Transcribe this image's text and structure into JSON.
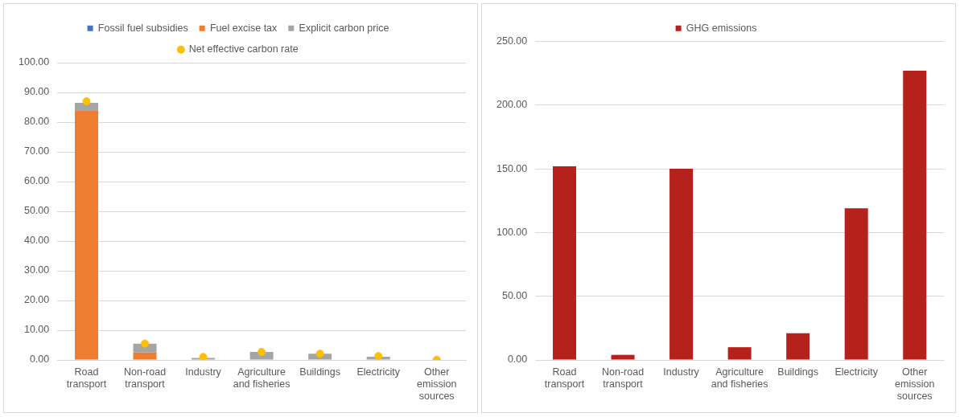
{
  "chart_data": [
    {
      "type": "bar",
      "stacked": true,
      "categories": [
        "Road transport",
        "Non-road transport",
        "Industry",
        "Agriculture and fisheries",
        "Buildings",
        "Electricity",
        "Other emission sources"
      ],
      "series": [
        {
          "name": "Fossil fuel subsidies",
          "color": "#4472c4",
          "values": [
            0,
            0,
            0,
            0,
            0,
            0,
            0
          ]
        },
        {
          "name": "Fuel excise tax",
          "color": "#ed7d31",
          "values": [
            84,
            2.5,
            0,
            0,
            0,
            0,
            0
          ]
        },
        {
          "name": "Explicit carbon price",
          "color": "#a5a5a5",
          "values": [
            2.5,
            3,
            0.7,
            2.7,
            2.1,
            1.1,
            0
          ]
        },
        {
          "name": "Net effective carbon rate",
          "type": "scatter",
          "color": "#ffc000",
          "values": [
            87,
            5.5,
            1,
            2.7,
            2.1,
            1.3,
            0.1
          ]
        }
      ],
      "ylim": [
        0,
        100
      ],
      "yticks": [
        {
          "value": 0,
          "label": "0.00"
        },
        {
          "value": 10,
          "label": "10.00"
        },
        {
          "value": 20,
          "label": "20.00"
        },
        {
          "value": 30,
          "label": "30.00"
        },
        {
          "value": 40,
          "label": "40.00"
        },
        {
          "value": 50,
          "label": "50.00"
        },
        {
          "value": 60,
          "label": "60.00"
        },
        {
          "value": 70,
          "label": "70.00"
        },
        {
          "value": 80,
          "label": "80.00"
        },
        {
          "value": 90,
          "label": "90.00"
        },
        {
          "value": 100,
          "label": "100.00"
        }
      ],
      "grid": "y",
      "legend": "top",
      "marker": "circle"
    },
    {
      "type": "bar",
      "categories": [
        "Road transport",
        "Non-road transport",
        "Industry",
        "Agriculture and fisheries",
        "Buildings",
        "Electricity",
        "Other emission sources"
      ],
      "series": [
        {
          "name": "GHG emissions",
          "color": "#b5221b",
          "values": [
            152,
            4,
            150,
            10,
            21,
            119,
            227
          ]
        }
      ],
      "ylim": [
        0,
        250
      ],
      "yticks": [
        {
          "value": 0,
          "label": "0.00"
        },
        {
          "value": 50,
          "label": "50.00"
        },
        {
          "value": 100,
          "label": "100.00"
        },
        {
          "value": 150,
          "label": "150.00"
        },
        {
          "value": 200,
          "label": "200.00"
        },
        {
          "value": 250,
          "label": "250.00"
        }
      ],
      "grid": "y",
      "legend": "top"
    }
  ]
}
